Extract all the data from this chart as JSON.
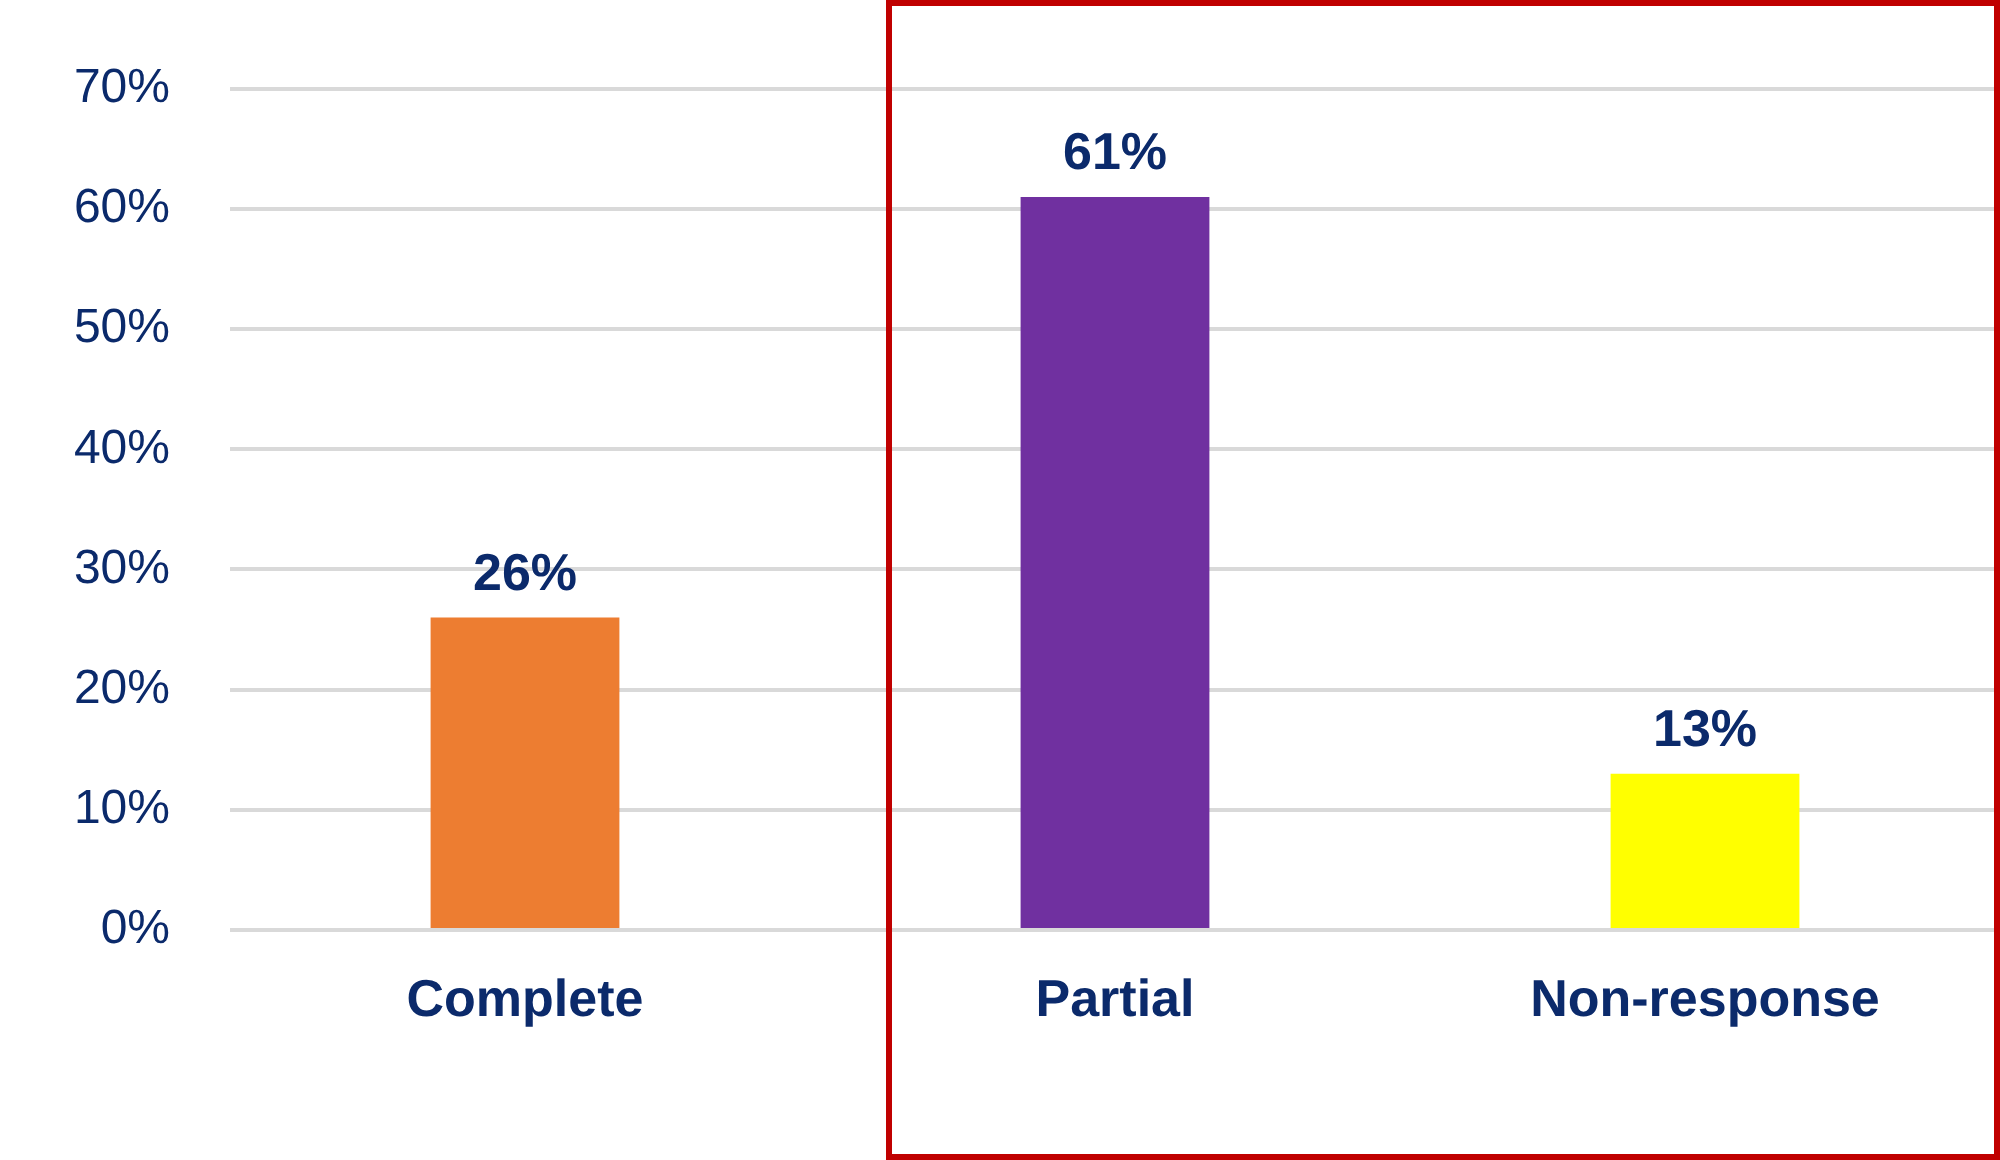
{
  "chart_data": {
    "type": "bar",
    "categories": [
      "Complete",
      "Partial",
      "Non-response"
    ],
    "values": [
      26,
      61,
      13
    ],
    "colors": [
      "#ed7d31",
      "#7030a0",
      "#ffff00"
    ],
    "value_labels": [
      "26%",
      "61%",
      "13%"
    ],
    "ylim": [
      0,
      70
    ],
    "yticks": [
      {
        "value": 0,
        "label": "0%"
      },
      {
        "value": 10,
        "label": "10%"
      },
      {
        "value": 20,
        "label": "20%"
      },
      {
        "value": 30,
        "label": "30%"
      },
      {
        "value": 40,
        "label": "40%"
      },
      {
        "value": 50,
        "label": "50%"
      },
      {
        "value": 60,
        "label": "60%"
      },
      {
        "value": 70,
        "label": "70%"
      }
    ],
    "grid": "y",
    "legend": false
  }
}
